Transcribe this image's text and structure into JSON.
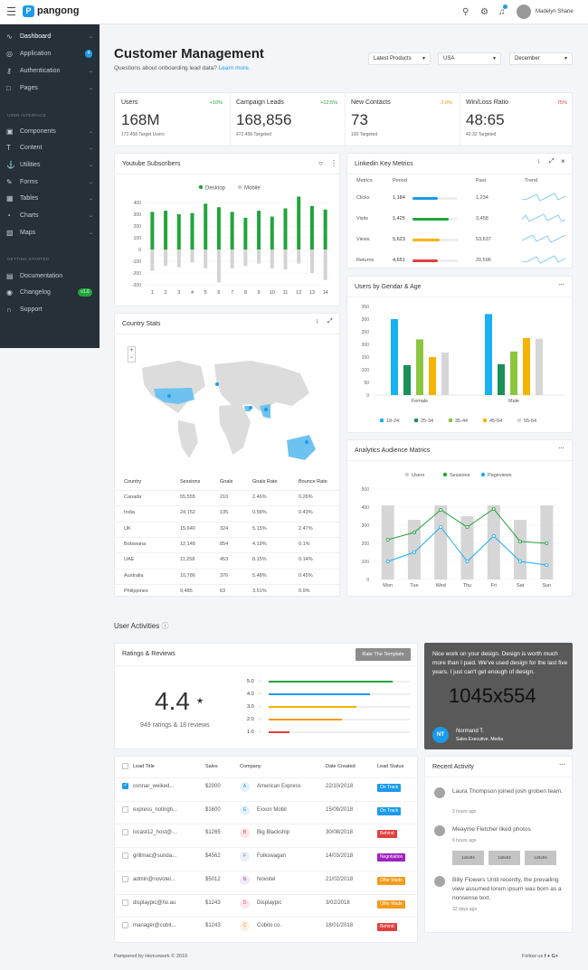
{
  "brand": {
    "name": "pangong"
  },
  "header": {
    "user_name": "Madelyn Shane",
    "search_icon": "search-icon",
    "settings_icon": "gear-icon",
    "notify_icon": "bell-icon"
  },
  "sidebar": {
    "items": [
      {
        "label": "Dashboard",
        "icon": "pulse-icon"
      },
      {
        "label": "Application",
        "icon": "globe-icon",
        "badge": "4"
      },
      {
        "label": "Authentication",
        "icon": "key-icon"
      },
      {
        "label": "Pages",
        "icon": "file-icon"
      },
      {
        "label": "Components",
        "icon": "layers-icon"
      },
      {
        "label": "Content",
        "icon": "type-icon"
      },
      {
        "label": "Utilities",
        "icon": "anchor-icon"
      },
      {
        "label": "Forms",
        "icon": "edit-icon"
      },
      {
        "label": "Tables",
        "icon": "grid-icon"
      },
      {
        "label": "Charts",
        "icon": "pie-chart-icon"
      },
      {
        "label": "Maps",
        "icon": "map-icon"
      },
      {
        "label": "Documentation",
        "icon": "book-icon"
      },
      {
        "label": "Changelog",
        "icon": "eye-icon",
        "badge": "v1.0"
      },
      {
        "label": "Support",
        "icon": "headphones-icon"
      }
    ],
    "section_interface": "USER INTERFACE",
    "section_started": "GETTING STARTED"
  },
  "page": {
    "title": "Customer Management",
    "subtitle": "Questions about onboarding lead data?",
    "subtitle_link": "Learn more."
  },
  "filters": {
    "product": "Latest Products",
    "country": "USA",
    "month": "December"
  },
  "kpis": [
    {
      "title": "Users",
      "change": "+10%",
      "value": "168M",
      "sub": "172,458 Target Users",
      "color": "#20a53b"
    },
    {
      "title": "Campaign Leads",
      "change": "+12.5%",
      "value": "168,856",
      "sub": "472,458 Targeted",
      "color": "#20a53b"
    },
    {
      "title": "New Contacts",
      "change": "-2.8%",
      "value": "73",
      "sub": "100 Targeted",
      "color": "#f39b1a"
    },
    {
      "title": "Win/Loss Ratio",
      "change": "-75%",
      "value": "48:65",
      "sub": "42:32 Targeted",
      "color": "#e0403e"
    }
  ],
  "youtube": {
    "title": "Youtube Subscribers",
    "legend": [
      "Desktop",
      "Mobile"
    ]
  },
  "linkedin": {
    "title": "Linkedin Key Metrics",
    "headers": [
      "Metrics",
      "Period",
      "Past",
      "Trend"
    ],
    "rows": [
      {
        "metric": "Clicks",
        "period": "1,184",
        "past": "1,234",
        "pct": 0.55,
        "color": "#1b9bea"
      },
      {
        "metric": "Visits",
        "period": "1,425",
        "past": "3,458",
        "pct": 0.8,
        "color": "#20a53b"
      },
      {
        "metric": "Views",
        "period": "5,623",
        "past": "53,637",
        "pct": 0.6,
        "color": "#f5b400"
      },
      {
        "metric": "Returns",
        "period": "4,651",
        "past": "20,596",
        "pct": 0.55,
        "color": "#e0403e"
      }
    ]
  },
  "country": {
    "title": "Country Stats",
    "headers": [
      "Country",
      "Sessions",
      "Goals",
      "Goals Rate",
      "Bounce Rate"
    ],
    "rows": [
      [
        "Canada",
        "55,555",
        "210",
        "2.46%",
        "0.26%"
      ],
      [
        "India",
        "24,152",
        "135",
        "0.58%",
        "0.43%"
      ],
      [
        "UK",
        "15,640",
        "324",
        "5.15%",
        "2.47%"
      ],
      [
        "Botswana",
        "12,148",
        "854",
        "4.19%",
        "0.1%"
      ],
      [
        "UAE",
        "11,258",
        "453",
        "8.15%",
        "0.14%"
      ],
      [
        "Australia",
        "10,786",
        "376",
        "5.48%",
        "0.45%"
      ],
      [
        "Philippines",
        "9,485",
        "63",
        "3.51%",
        "0.9%"
      ]
    ]
  },
  "gender": {
    "title": "Users by Gendar & Age"
  },
  "analytics": {
    "title": "Analytics Audience Matrics"
  },
  "activities": {
    "title": "User Activities"
  },
  "ratings": {
    "title": "Ratings & Reviews",
    "button": "Rate The Template",
    "score": "4.4",
    "summary": "949 ratings & 18 reviews",
    "bars": [
      {
        "label": "5.0",
        "pct": 0.88,
        "color": "#20a53b"
      },
      {
        "label": "4.0",
        "pct": 0.72,
        "color": "#1b9bea"
      },
      {
        "label": "3.0",
        "pct": 0.62,
        "color": "#f5b400"
      },
      {
        "label": "2.0",
        "pct": 0.52,
        "color": "#f39b1a"
      },
      {
        "label": "1.0",
        "pct": 0.15,
        "color": "#e0403e"
      }
    ]
  },
  "testimonial": {
    "text": "Nice work on your design. Design is worth much more than I paid. We've used design for the last five years. I just can't get enough of design.",
    "placeholder": "1045x554",
    "initials": "NT",
    "name": "Normand T.",
    "role": "Sales Executive, Media"
  },
  "leads": {
    "headers": [
      "Lead Title",
      "Sales",
      "Company",
      "Date Created",
      "Lead Status"
    ],
    "rows": [
      {
        "title": "connar_weiked...",
        "sales": "$2000",
        "company": "American Express",
        "letter": "A",
        "date": "22/10/2018",
        "status": "On Track",
        "checked": true
      },
      {
        "title": "express_notingh...",
        "sales": "$1600",
        "company": "Exxon Mobil",
        "letter": "E",
        "date": "15/09/2018",
        "status": "On Track",
        "checked": false
      },
      {
        "title": "locast12_host@...",
        "sales": "$1265",
        "company": "Big Blackship",
        "letter": "B",
        "date": "30/08/2018",
        "status": "Behind",
        "checked": false
      },
      {
        "title": "grillmac@sunda...",
        "sales": "$4562",
        "company": "Folkswagan",
        "letter": "F",
        "date": "14/03/2018",
        "status": "Negotiation",
        "checked": false
      },
      {
        "title": "admin@novotel...",
        "sales": "$5012",
        "company": "Novotel",
        "letter": "N",
        "date": "21/02/2018",
        "status": "Offer Made",
        "checked": false
      },
      {
        "title": "displaypic@ho.au",
        "sales": "$1243",
        "company": "Displaypic",
        "letter": "D",
        "date": "3/02/2018",
        "status": "Offer Made",
        "checked": false
      },
      {
        "title": "manager@cobit...",
        "sales": "$1243",
        "company": "Cobito co.",
        "letter": "C",
        "date": "18/01/2018",
        "status": "Behind",
        "checked": false
      }
    ]
  },
  "recent": {
    "title": "Recent Activity",
    "items": [
      {
        "text": "Laura Thompson joined josh groben team.",
        "time": "3 hours ago"
      },
      {
        "text": "Meayme Fletcher liked photos",
        "time": "6 hours ago",
        "thumbs": [
          "1x8x84",
          "1x8x84",
          "1x8x84"
        ]
      },
      {
        "text": "Billy Flowers Until recently, the prevailing view assumed lorem ipsum was born as a nonsense text.",
        "time": "32 days ago"
      }
    ]
  },
  "footer": {
    "left": "Pampered by Hencework © 2019",
    "right": "Follow us"
  },
  "chart_data": [
    {
      "type": "bar",
      "title": "Youtube Subscribers",
      "categories": [
        "1",
        "2",
        "3",
        "4",
        "5",
        "6",
        "7",
        "8",
        "9",
        "10",
        "11",
        "12",
        "13",
        "14"
      ],
      "series": [
        {
          "name": "Desktop",
          "values": [
            320,
            330,
            300,
            310,
            390,
            360,
            320,
            270,
            330,
            280,
            350,
            450,
            370,
            340
          ]
        },
        {
          "name": "Mobile",
          "values": [
            -180,
            -140,
            -150,
            -110,
            -160,
            -280,
            -160,
            -140,
            -120,
            -160,
            -170,
            -120,
            -200,
            -260
          ]
        }
      ],
      "ylim": [
        -300,
        400
      ],
      "yticks": [
        -300,
        -200,
        -100,
        0,
        100,
        200,
        300,
        400
      ]
    },
    {
      "type": "bar",
      "title": "Users by Gendar & Age",
      "categories": [
        "Female",
        "Male"
      ],
      "series": [
        {
          "name": "18-24",
          "values": [
            300,
            320
          ]
        },
        {
          "name": "25-34",
          "values": [
            118,
            122
          ]
        },
        {
          "name": "35-44",
          "values": [
            220,
            172
          ]
        },
        {
          "name": "45-54",
          "values": [
            150,
            225
          ]
        },
        {
          "name": "55-64",
          "values": [
            168,
            222
          ]
        }
      ],
      "ylim": [
        0,
        350
      ]
    },
    {
      "type": "bar",
      "title": "Analytics Audience Matrics",
      "categories": [
        "Mon",
        "Tue",
        "Wed",
        "Thu",
        "Fri",
        "Sat",
        "Sun"
      ],
      "series": [
        {
          "name": "Users",
          "values": [
            410,
            330,
            410,
            350,
            410,
            330,
            410
          ]
        },
        {
          "name": "Sessions",
          "values": [
            220,
            260,
            385,
            290,
            390,
            210,
            200
          ]
        },
        {
          "name": "Pageviews",
          "values": [
            100,
            150,
            290,
            100,
            240,
            100,
            80
          ]
        }
      ],
      "ylim": [
        0,
        500
      ]
    }
  ]
}
